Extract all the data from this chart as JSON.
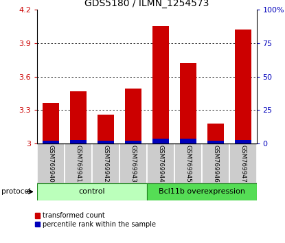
{
  "title": "GDS5180 / ILMN_1254573",
  "samples": [
    "GSM769940",
    "GSM769941",
    "GSM769942",
    "GSM769943",
    "GSM769944",
    "GSM769945",
    "GSM769946",
    "GSM769947"
  ],
  "red_values": [
    3.36,
    3.47,
    3.26,
    3.49,
    4.05,
    3.72,
    3.18,
    4.02
  ],
  "blue_values": [
    0.025,
    0.03,
    0.025,
    0.025,
    0.04,
    0.04,
    0.025,
    0.03
  ],
  "baseline": 3.0,
  "ylim_left": [
    3.0,
    4.2
  ],
  "yticks_left": [
    3.0,
    3.3,
    3.6,
    3.9,
    4.2
  ],
  "yticks_left_labels": [
    "3",
    "3.3",
    "3.6",
    "3.9",
    "4.2"
  ],
  "yticks_right": [
    0,
    25,
    50,
    75,
    100
  ],
  "yticks_right_labels": [
    "0",
    "25",
    "50",
    "75",
    "100%"
  ],
  "bar_color_red": "#cc0000",
  "bar_color_blue": "#0000bb",
  "group_labels": [
    "control",
    "Bcl11b overexpression"
  ],
  "group_ranges": [
    [
      0,
      4
    ],
    [
      4,
      8
    ]
  ],
  "group_colors_light": [
    "#bbffbb",
    "#55dd55"
  ],
  "protocol_label": "protocol",
  "legend_red": "transformed count",
  "legend_blue": "percentile rank within the sample",
  "bar_width": 0.6,
  "title_fontsize": 10,
  "sample_fontsize": 6.5,
  "group_fontsize": 8,
  "legend_fontsize": 7,
  "sample_bg_color": "#cccccc",
  "grid_color": "#333333"
}
